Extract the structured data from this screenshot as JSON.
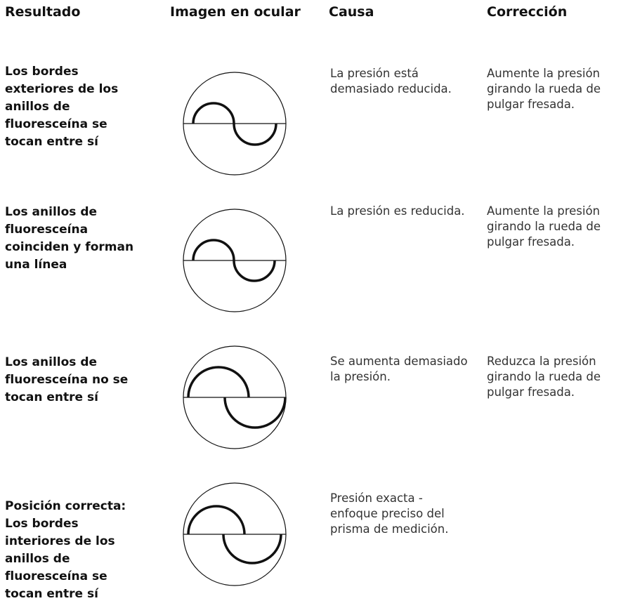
{
  "header": {
    "columns": [
      "Resultado",
      "Imagen en ocular",
      "Causa",
      "Corrección"
    ]
  },
  "rows": [
    {
      "result": "Los bordes exteriores de los anillos de fluoresceína se tocan entre sí",
      "cause": "La presión está demasiado reducida.",
      "correction": "Aumente la presión girando la rueda de pulgar fresada."
    },
    {
      "result": "Los anillos de fluoresceína coinciden y forman una línea",
      "cause": "La presión es reducida.",
      "correction": "Aumente la presión girando la rueda de pulgar fresada."
    },
    {
      "result": "Los anillos de fluoresceína no se tocan entre sí",
      "cause": "Se aumenta demasiado la presión.",
      "correction": "Reduzca la presión girando la rueda de pulgar fresada."
    },
    {
      "result": "Posición correcta: Los bordes interiores de los anillos de fluoresceína se tocan entre sí",
      "cause": "Presión exacta - enfoque preciso del prisma de medición."
    }
  ]
}
